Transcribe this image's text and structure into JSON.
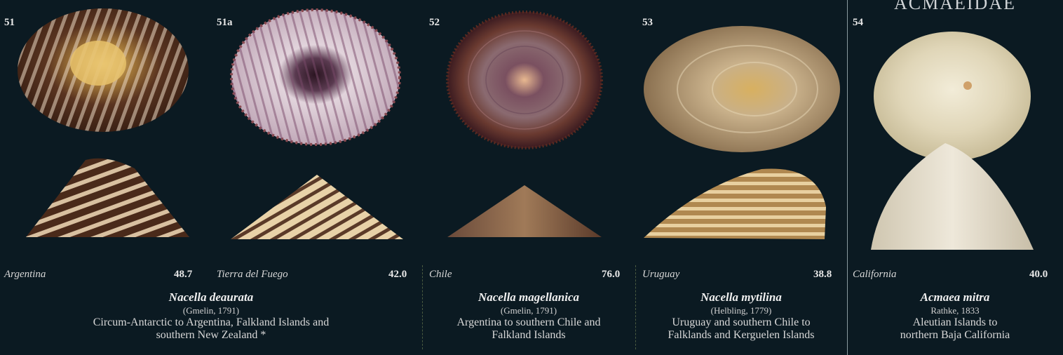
{
  "family_heading": "ACMAEIDAE",
  "specimens": [
    {
      "num": "51",
      "locality": "Argentina",
      "size": "48.7"
    },
    {
      "num": "51a",
      "locality": "Tierra del Fuego",
      "size": "42.0"
    },
    {
      "num": "52",
      "locality": "Chile",
      "size": "76.0"
    },
    {
      "num": "53",
      "locality": "Uruguay",
      "size": "38.8"
    },
    {
      "num": "54",
      "locality": "California",
      "size": "40.0"
    }
  ],
  "species": [
    {
      "name": "Nacella deaurata",
      "author": "(Gmelin, 1791)",
      "dist1": "Circum-Antarctic to Argentina, Falkland Islands and",
      "dist2": "southern New Zealand *"
    },
    {
      "name": "Nacella magellanica",
      "author": "(Gmelin, 1791)",
      "dist1": "Argentina to southern Chile and",
      "dist2": "Falkland Islands"
    },
    {
      "name": "Nacella mytilina",
      "author": "(Helbling, 1779)",
      "dist1": "Uruguay and southern Chile to",
      "dist2": "Falklands and Kerguelen Islands"
    },
    {
      "name": "Acmaea mitra",
      "author": "Rathke, 1833",
      "dist1": "Aleutian Islands to",
      "dist2": "northern Baja California"
    }
  ],
  "colors": {
    "background": "#0b1a22"
  }
}
